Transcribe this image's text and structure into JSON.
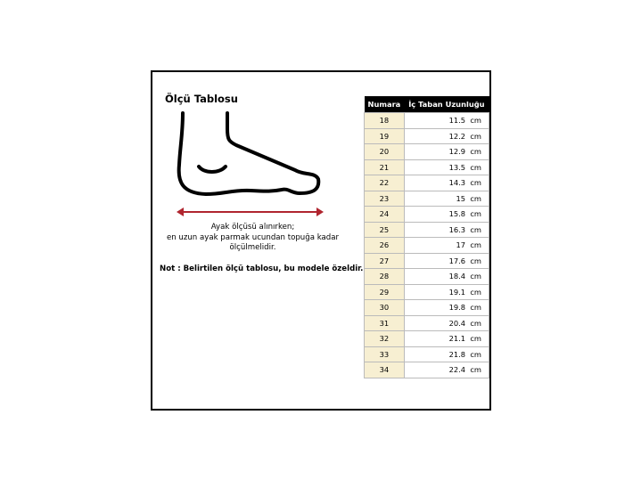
{
  "title": "Ölçü Tablosu",
  "instruction": [
    "Ayak ölçüsü alınırken;",
    "en uzun ayak parmak ucundan topuğa kadar",
    "ölçülmelidir."
  ],
  "note": "Not : Belirtilen ölçü tablosu, bu modele özeldir.",
  "colors": {
    "arrow": "#b0252f",
    "number_cell": "#f7efd2",
    "header": "#000000"
  },
  "table": {
    "headers": [
      "Numara",
      "İç Taban Uzunluğu"
    ],
    "rows": [
      [
        "18",
        "11.5  cm"
      ],
      [
        "19",
        "12.2  cm"
      ],
      [
        "20",
        "12.9  cm"
      ],
      [
        "21",
        "13.5  cm"
      ],
      [
        "22",
        "14.3  cm"
      ],
      [
        "23",
        "15  cm"
      ],
      [
        "24",
        "15.8  cm"
      ],
      [
        "25",
        "16.3  cm"
      ],
      [
        "26",
        "17  cm"
      ],
      [
        "27",
        "17.6  cm"
      ],
      [
        "28",
        "18.4  cm"
      ],
      [
        "29",
        "19.1  cm"
      ],
      [
        "30",
        "19.8  cm"
      ],
      [
        "31",
        "20.4  cm"
      ],
      [
        "32",
        "21.1  cm"
      ],
      [
        "33",
        "21.8  cm"
      ],
      [
        "34",
        "22.4  cm"
      ]
    ]
  }
}
